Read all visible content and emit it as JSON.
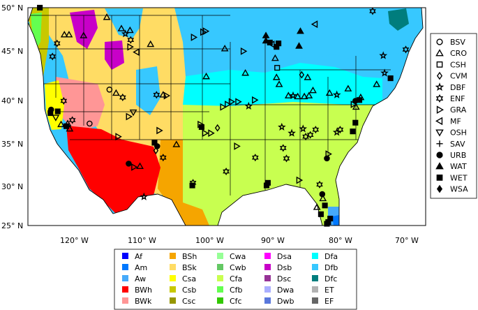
{
  "map": {
    "lat_ticks": [
      "50° N",
      "45° N",
      "40° N",
      "35° N",
      "30° N",
      "25° N"
    ],
    "lon_ticks": [
      "120° W",
      "110° W",
      "100° W",
      "90° W",
      "80° W",
      "70° W"
    ],
    "lat_range": [
      25,
      50
    ],
    "lon_range": [
      -126,
      -66
    ]
  },
  "site_legend": [
    {
      "label": "BSV",
      "symbol": "circle"
    },
    {
      "label": "CRO",
      "symbol": "triangle-up"
    },
    {
      "label": "CSH",
      "symbol": "square"
    },
    {
      "label": "CVM",
      "symbol": "diamond"
    },
    {
      "label": "DBF",
      "symbol": "star"
    },
    {
      "label": "ENF",
      "symbol": "hexagram"
    },
    {
      "label": "GRA",
      "symbol": "triangle-right"
    },
    {
      "label": "MF",
      "symbol": "triangle-left"
    },
    {
      "label": "OSH",
      "symbol": "triangle-down"
    },
    {
      "label": "SAV",
      "symbol": "plus"
    },
    {
      "label": "URB",
      "symbol": "circle-filled"
    },
    {
      "label": "WAT",
      "symbol": "triangle-up-filled"
    },
    {
      "label": "WET",
      "symbol": "square-filled"
    },
    {
      "label": "WSA",
      "symbol": "diamond-filled"
    }
  ],
  "climate_legend": [
    {
      "code": "Af",
      "color": "#0000ff"
    },
    {
      "code": "Am",
      "color": "#0078ff"
    },
    {
      "code": "Aw",
      "color": "#46aafa"
    },
    {
      "code": "BWh",
      "color": "#ff0000"
    },
    {
      "code": "BWk",
      "color": "#ff9696"
    },
    {
      "code": "BSh",
      "color": "#f5a500"
    },
    {
      "code": "BSk",
      "color": "#ffdc64"
    },
    {
      "code": "Csa",
      "color": "#ffff00"
    },
    {
      "code": "Csb",
      "color": "#c8c800"
    },
    {
      "code": "Csc",
      "color": "#969600"
    },
    {
      "code": "Cwa",
      "color": "#96ff96"
    },
    {
      "code": "Cwb",
      "color": "#64c864"
    },
    {
      "code": "Cfa",
      "color": "#c8ff50"
    },
    {
      "code": "Cfb",
      "color": "#64ff50"
    },
    {
      "code": "Cfc",
      "color": "#32c800"
    },
    {
      "code": "Dsa",
      "color": "#ff00ff"
    },
    {
      "code": "Dsb",
      "color": "#c800c8"
    },
    {
      "code": "Dsc",
      "color": "#963296"
    },
    {
      "code": "Dwa",
      "color": "#aaafff"
    },
    {
      "code": "Dwb",
      "color": "#5a78dc"
    },
    {
      "code": "Dfa",
      "color": "#00ffff"
    },
    {
      "code": "Dfb",
      "color": "#37c8ff"
    },
    {
      "code": "Dfc",
      "color": "#007d7d"
    },
    {
      "code": "ET",
      "color": "#b2b2b2"
    },
    {
      "code": "EF",
      "color": "#666666"
    }
  ],
  "sites": [
    {
      "lon": -124.2,
      "lat": 50.0,
      "type": "WET"
    },
    {
      "lon": -120.5,
      "lat": 46.9,
      "type": "CRO"
    },
    {
      "lon": -119.8,
      "lat": 46.9,
      "type": "CRO"
    },
    {
      "lon": -117.6,
      "lat": 46.8,
      "type": "CRO"
    },
    {
      "lon": -114.1,
      "lat": 48.9,
      "type": "CRO"
    },
    {
      "lon": -111.9,
      "lat": 47.6,
      "type": "CRO"
    },
    {
      "lon": -110.6,
      "lat": 47.4,
      "type": "CRO"
    },
    {
      "lon": -111.3,
      "lat": 47.0,
      "type": "DBF"
    },
    {
      "lon": -110.5,
      "lat": 46.3,
      "type": "ENF"
    },
    {
      "lon": -107.5,
      "lat": 45.8,
      "type": "CRO"
    },
    {
      "lon": -110.6,
      "lat": 45.5,
      "type": "GRA"
    },
    {
      "lon": -109.6,
      "lat": 44.9,
      "type": "MF"
    },
    {
      "lon": -121.6,
      "lat": 45.9,
      "type": "ENF"
    },
    {
      "lon": -122.3,
      "lat": 44.4,
      "type": "ENF"
    },
    {
      "lon": -120.6,
      "lat": 39.3,
      "type": "ENF"
    },
    {
      "lon": -122.5,
      "lat": 38.3,
      "type": "URB"
    },
    {
      "lon": -122.6,
      "lat": 37.9,
      "type": "WET"
    },
    {
      "lon": -121.5,
      "lat": 38.1,
      "type": "WET"
    },
    {
      "lon": -121.8,
      "lat": 37.4,
      "type": "OSH"
    },
    {
      "lon": -121.0,
      "lat": 36.6,
      "type": "CRO"
    },
    {
      "lon": -120.0,
      "lat": 36.7,
      "type": "CRO"
    },
    {
      "lon": -120.2,
      "lat": 36.4,
      "type": "WET"
    },
    {
      "lon": -119.7,
      "lat": 36.1,
      "type": "CRO"
    },
    {
      "lon": -119.3,
      "lat": 37.1,
      "type": "ENF"
    },
    {
      "lon": -116.7,
      "lat": 36.7,
      "type": "BSV"
    },
    {
      "lon": -113.7,
      "lat": 40.6,
      "type": "BSV"
    },
    {
      "lon": -112.7,
      "lat": 40.2,
      "type": "CRO"
    },
    {
      "lon": -111.7,
      "lat": 39.7,
      "type": "ENF"
    },
    {
      "lon": -110.1,
      "lat": 38.0,
      "type": "OSH"
    },
    {
      "lon": -110.8,
      "lat": 37.5,
      "type": "GRA"
    },
    {
      "lon": -112.4,
      "lat": 35.2,
      "type": "GRA"
    },
    {
      "lon": -106.6,
      "lat": 40.0,
      "type": "ENF"
    },
    {
      "lon": -105.6,
      "lat": 40.0,
      "type": "CRO"
    },
    {
      "lon": -105.1,
      "lat": 39.9,
      "type": "GRA"
    },
    {
      "lon": -106.2,
      "lat": 35.9,
      "type": "GRA"
    },
    {
      "lon": -106.9,
      "lat": 34.5,
      "type": "WET"
    },
    {
      "lon": -106.5,
      "lat": 34.1,
      "type": "URB"
    },
    {
      "lon": -106.7,
      "lat": 33.6,
      "type": "CVM"
    },
    {
      "lon": -105.6,
      "lat": 32.8,
      "type": "ENF"
    },
    {
      "lon": -110.8,
      "lat": 32.1,
      "type": "URB"
    },
    {
      "lon": -110.0,
      "lat": 31.7,
      "type": "GRA"
    },
    {
      "lon": -109.1,
      "lat": 31.8,
      "type": "CRO"
    },
    {
      "lon": -108.5,
      "lat": 28.3,
      "type": "DBF"
    },
    {
      "lon": -103.6,
      "lat": 34.3,
      "type": "CRO"
    },
    {
      "lon": -101.2,
      "lat": 29.6,
      "type": "WET"
    },
    {
      "lon": -101.1,
      "lat": 29.9,
      "type": "ENF"
    },
    {
      "lon": -100.0,
      "lat": 36.6,
      "type": "GRA"
    },
    {
      "lon": -99.8,
      "lat": 36.3,
      "type": "WET"
    },
    {
      "lon": -99.3,
      "lat": 35.6,
      "type": "GRA"
    },
    {
      "lon": -98.4,
      "lat": 35.6,
      "type": "GRA"
    },
    {
      "lon": -97.4,
      "lat": 36.2,
      "type": "CVM"
    },
    {
      "lon": -101.0,
      "lat": 46.6,
      "type": "GRA"
    },
    {
      "lon": -99.6,
      "lat": 47.2,
      "type": "GRA"
    },
    {
      "lon": -99.2,
      "lat": 47.3,
      "type": "GRA"
    },
    {
      "lon": -99.1,
      "lat": 42.1,
      "type": "CRO"
    },
    {
      "lon": -96.3,
      "lat": 45.3,
      "type": "CRO"
    },
    {
      "lon": -96.6,
      "lat": 38.6,
      "type": "GRA"
    },
    {
      "lon": -95.9,
      "lat": 38.9,
      "type": "GRA"
    },
    {
      "lon": -95.3,
      "lat": 39.2,
      "type": "GRA"
    },
    {
      "lon": -94.3,
      "lat": 39.2,
      "type": "GRA"
    },
    {
      "lon": -94.5,
      "lat": 34.1,
      "type": "GRA"
    },
    {
      "lon": -96.1,
      "lat": 31.2,
      "type": "ENF"
    },
    {
      "lon": -91.8,
      "lat": 39.4,
      "type": "GRA"
    },
    {
      "lon": -93.5,
      "lat": 45.0,
      "type": "GRA"
    },
    {
      "lon": -93.2,
      "lat": 42.5,
      "type": "CRO"
    },
    {
      "lon": -92.7,
      "lat": 38.7,
      "type": "DBF"
    },
    {
      "lon": -91.7,
      "lat": 32.8,
      "type": "ENF"
    },
    {
      "lon": -90.1,
      "lat": 46.2,
      "type": "WAT"
    },
    {
      "lon": -89.5,
      "lat": 46.0,
      "type": "WET"
    },
    {
      "lon": -89.2,
      "lat": 45.8,
      "type": "MF"
    },
    {
      "lon": -88.5,
      "lat": 45.5,
      "type": "WET"
    },
    {
      "lon": -88.2,
      "lat": 45.9,
      "type": "WET"
    },
    {
      "lon": -88.7,
      "lat": 44.2,
      "type": "CRO"
    },
    {
      "lon": -90.1,
      "lat": 46.8,
      "type": "WAT"
    },
    {
      "lon": -84.9,
      "lat": 47.3,
      "type": "WAT"
    },
    {
      "lon": -82.7,
      "lat": 48.1,
      "type": "MF"
    },
    {
      "lon": -88.4,
      "lat": 43.1,
      "type": "CSH"
    },
    {
      "lon": -88.5,
      "lat": 42.0,
      "type": "CRO"
    },
    {
      "lon": -88.1,
      "lat": 41.2,
      "type": "CRO"
    },
    {
      "lon": -85.1,
      "lat": 45.6,
      "type": "WAT"
    },
    {
      "lon": -84.7,
      "lat": 42.3,
      "type": "CVM"
    },
    {
      "lon": -83.8,
      "lat": 42.0,
      "type": "CRO"
    },
    {
      "lon": -86.7,
      "lat": 39.9,
      "type": "CRO"
    },
    {
      "lon": -86.0,
      "lat": 39.9,
      "type": "DBF"
    },
    {
      "lon": -85.3,
      "lat": 39.8,
      "type": "CRO"
    },
    {
      "lon": -84.3,
      "lat": 39.8,
      "type": "CRO"
    },
    {
      "lon": -83.6,
      "lat": 39.9,
      "type": "CRO"
    },
    {
      "lon": -87.7,
      "lat": 36.3,
      "type": "DBF"
    },
    {
      "lon": -86.2,
      "lat": 35.6,
      "type": "DBF"
    },
    {
      "lon": -84.5,
      "lat": 36.1,
      "type": "DBF"
    },
    {
      "lon": -84.1,
      "lat": 35.2,
      "type": "ENF"
    },
    {
      "lon": -83.4,
      "lat": 35.4,
      "type": "ENF"
    },
    {
      "lon": -82.6,
      "lat": 36.0,
      "type": "ENF"
    },
    {
      "lon": -87.5,
      "lat": 33.9,
      "type": "ENF"
    },
    {
      "lon": -87.0,
      "lat": 32.7,
      "type": "ENF"
    },
    {
      "lon": -85.1,
      "lat": 30.2,
      "type": "GRA"
    },
    {
      "lon": -89.8,
      "lat": 29.9,
      "type": "WET"
    },
    {
      "lon": -90.0,
      "lat": 29.6,
      "type": "WET"
    },
    {
      "lon": -82.0,
      "lat": 29.7,
      "type": "ENF"
    },
    {
      "lon": -81.6,
      "lat": 28.6,
      "type": "URB"
    },
    {
      "lon": -81.5,
      "lat": 28.1,
      "type": "CRO"
    },
    {
      "lon": -80.4,
      "lat": 25.8,
      "type": "WET"
    },
    {
      "lon": -80.7,
      "lat": 25.4,
      "type": "WET"
    },
    {
      "lon": -80.9,
      "lat": 25.2,
      "type": "WET"
    },
    {
      "lon": -81.8,
      "lat": 26.3,
      "type": "WET"
    },
    {
      "lon": -81.2,
      "lat": 27.3,
      "type": "WET"
    },
    {
      "lon": -82.4,
      "lat": 27.1,
      "type": "CRO"
    },
    {
      "lon": -83.0,
      "lat": 40.5,
      "type": "CRO"
    },
    {
      "lon": -80.5,
      "lat": 40.2,
      "type": "CRO"
    },
    {
      "lon": -79.4,
      "lat": 40.0,
      "type": "DBF"
    },
    {
      "lon": -77.7,
      "lat": 40.7,
      "type": "CRO"
    },
    {
      "lon": -76.6,
      "lat": 39.3,
      "type": "URB"
    },
    {
      "lon": -76.0,
      "lat": 39.4,
      "type": "WET"
    },
    {
      "lon": -76.9,
      "lat": 38.9,
      "type": "GRA"
    },
    {
      "lon": -76.5,
      "lat": 38.6,
      "type": "CRO"
    },
    {
      "lon": -75.8,
      "lat": 39.7,
      "type": "CRO"
    },
    {
      "lon": -78.9,
      "lat": 36.0,
      "type": "ENF"
    },
    {
      "lon": -79.4,
      "lat": 35.7,
      "type": "DBF"
    },
    {
      "lon": -77.0,
      "lat": 35.8,
      "type": "WET"
    },
    {
      "lon": -76.6,
      "lat": 36.8,
      "type": "WET"
    },
    {
      "lon": -80.9,
      "lat": 32.7,
      "type": "URB"
    },
    {
      "lon": -80.7,
      "lat": 33.2,
      "type": "GRA"
    },
    {
      "lon": -72.2,
      "lat": 42.5,
      "type": "DBF"
    },
    {
      "lon": -73.4,
      "lat": 41.2,
      "type": "CRO"
    },
    {
      "lon": -71.3,
      "lat": 41.9,
      "type": "WET"
    },
    {
      "lon": -72.4,
      "lat": 44.5,
      "type": "DBF"
    },
    {
      "lon": -69.0,
      "lat": 45.2,
      "type": "ENF"
    },
    {
      "lon": -74.0,
      "lat": 49.6,
      "type": "ENF"
    }
  ]
}
